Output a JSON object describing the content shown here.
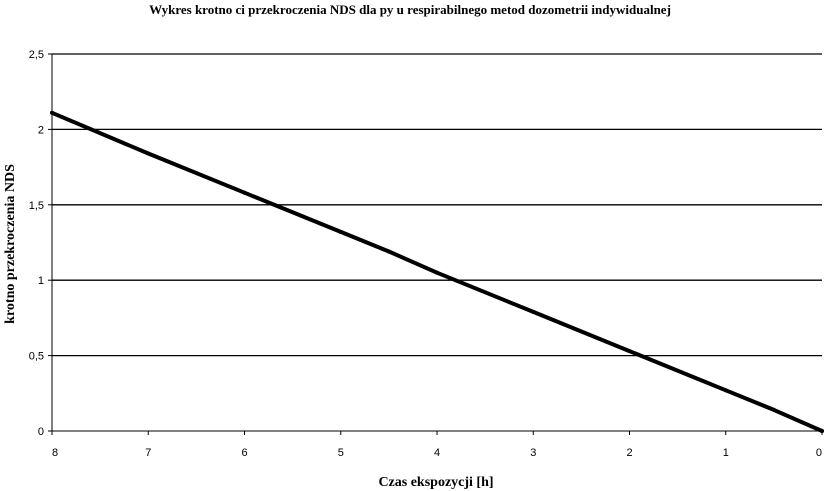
{
  "chart_data": {
    "type": "line",
    "title": "Wykres krotno  ci przekroczenia NDS dla py u respirabilnego metod   dozometrii indywidualnej",
    "xlabel": "Czas ekspozycji [h]",
    "ylabel": "krotno     przekroczenia NDS",
    "x_ticks": [
      "8",
      "7",
      "6",
      "5",
      "4",
      "3",
      "2",
      "1",
      "0"
    ],
    "y_ticks": [
      "0",
      "0,5",
      "1",
      "1,5",
      "2",
      "2,5"
    ],
    "xlim": [
      8,
      0
    ],
    "ylim": [
      0,
      2.5
    ],
    "x_reversed": true,
    "grid": "horizontal",
    "series": [
      {
        "x": [
          8,
          7,
          6,
          5,
          4.5,
          4,
          3,
          2,
          1,
          0.5,
          0
        ],
        "y": [
          2.11,
          1.84,
          1.58,
          1.32,
          1.19,
          1.05,
          0.79,
          0.53,
          0.27,
          0.14,
          0
        ],
        "color": "#000000"
      }
    ]
  }
}
